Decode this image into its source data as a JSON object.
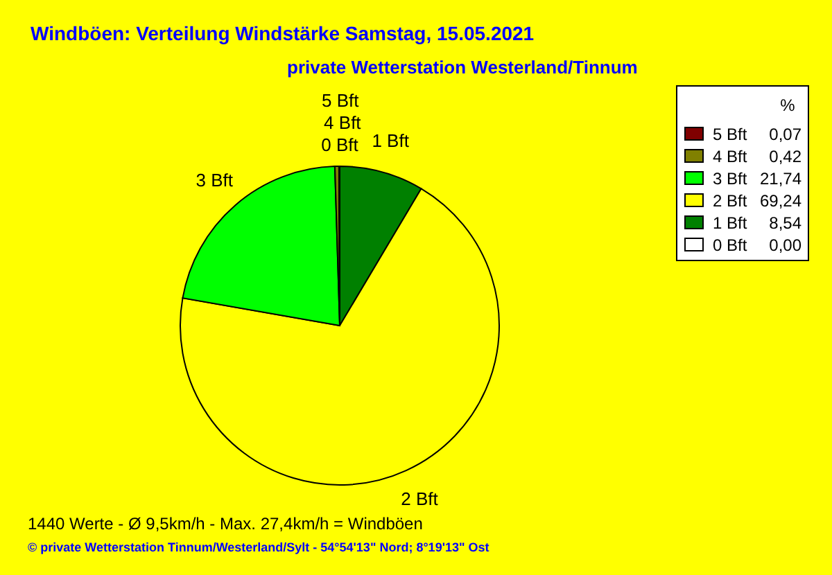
{
  "chart_data": {
    "type": "pie",
    "title": "Windböen: Verteilung Windstärke  Samstag, 15.05.2021",
    "subtitle": "private Wetterstation Westerland/Tinnum",
    "categories": [
      "5 Bft",
      "4 Bft",
      "3 Bft",
      "2 Bft",
      "1 Bft",
      "0 Bft"
    ],
    "values": [
      0.07,
      0.42,
      21.74,
      69.24,
      8.54,
      0.0
    ],
    "value_labels": [
      "0,07",
      "0,42",
      "21,74",
      "69,24",
      "8,54",
      "0,00"
    ],
    "colors": [
      "#800000",
      "#808000",
      "#00ff00",
      "#ffff00",
      "#008000",
      "#ffffff"
    ],
    "legend": "top right",
    "legend_title": "%",
    "annotations": [
      "1440 Werte   -   Ø 9,5km/h  -  Max. 27,4km/h = Windböen",
      "© private Wetterstation Tinnum/Westerland/Sylt   -   54°54'13\" Nord; 8°19'13\" Ost"
    ]
  }
}
